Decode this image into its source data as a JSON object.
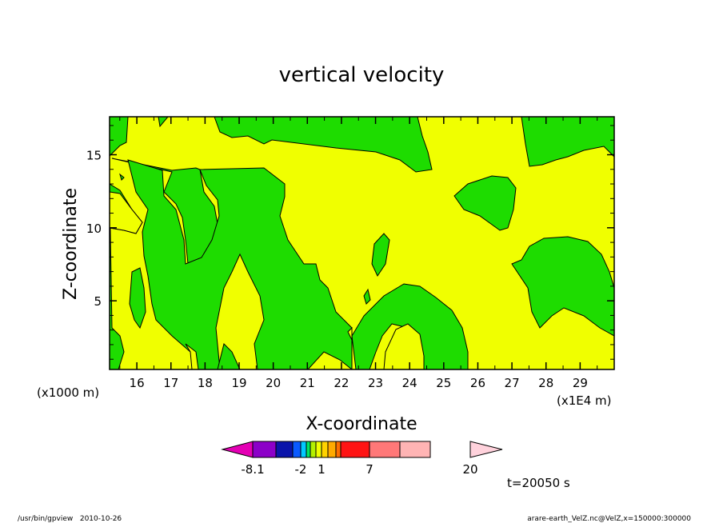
{
  "chart_data": {
    "type": "heatmap",
    "title": "vertical velocity",
    "xlabel": "X-coordinate",
    "ylabel": "Z-coordinate",
    "x_unit_left": "(x1000 m)",
    "x_unit_right": "(x1E4 m)",
    "xlim": [
      15.2,
      30.0
    ],
    "ylim": [
      0.3,
      17.6
    ],
    "x_ticks": [
      "16",
      "17",
      "18",
      "19",
      "20",
      "21",
      "22",
      "23",
      "24",
      "25",
      "26",
      "27",
      "28",
      "29"
    ],
    "x_tick_values": [
      16,
      17,
      18,
      19,
      20,
      21,
      22,
      23,
      24,
      25,
      26,
      27,
      28,
      29
    ],
    "y_ticks": [
      "5",
      "10",
      "15"
    ],
    "y_tick_values": [
      5,
      10,
      15
    ],
    "colors": {
      "positive_region": "#f0ff00",
      "negative_region": "#1edc00",
      "contour": "#000000"
    },
    "time_label": "t=20050 s",
    "colorbar": {
      "colors": [
        "#e400b4",
        "#8c00c8",
        "#0a14aa",
        "#0a5aff",
        "#00c8ff",
        "#00e664",
        "#b4f000",
        "#f0ff00",
        "#ffd200",
        "#ffaa00",
        "#ff6e00",
        "#ff1414",
        "#ff7878",
        "#ffb4b4",
        "#ffd2dc"
      ],
      "labels": [
        {
          "text": "-8.1",
          "value": -8.1
        },
        {
          "text": "-2",
          "value": -2
        },
        {
          "text": "1",
          "value": 1
        },
        {
          "text": "7",
          "value": 7
        },
        {
          "text": "20",
          "value": 20
        }
      ]
    },
    "footer_left": "/usr/bin/gpview   2010-10-26",
    "footer_right": "arare-earth_VelZ.nc@VelZ,x=150000:300000"
  }
}
